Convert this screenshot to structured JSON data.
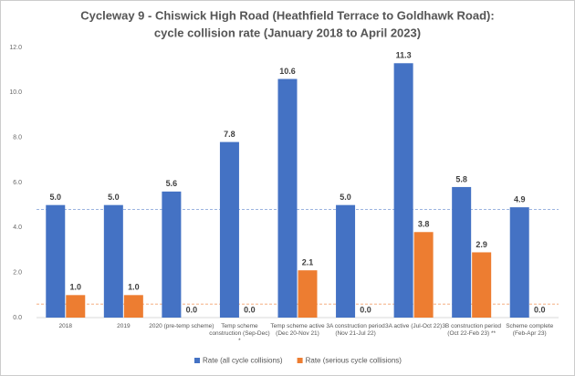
{
  "chart_data": {
    "type": "bar",
    "title": "Cycleway 9 - Chiswick High Road (Heathfield Terrace to Goldhawk Road):",
    "subtitle": "cycle collision rate (January 2018 to April 2023)",
    "categories": [
      "2018",
      "2019",
      "2020 (pre-temp scheme)",
      "Temp scheme construction (Sep-Dec) *",
      "Temp scheme active (Dec 20-Nov 21)",
      "3A construction period (Nov 21-Jul 22)",
      "3A active (Jul-Oct 22)",
      "3B construction period (Oct 22-Feb 23) **",
      "Scheme complete (Feb-Apr 23)"
    ],
    "series": [
      {
        "name": "Rate (all cycle collisions)",
        "color": "#4472c4",
        "values": [
          5.0,
          5.0,
          5.6,
          7.8,
          10.6,
          5.0,
          11.3,
          5.8,
          4.9
        ],
        "value_labels": [
          "5.0",
          "5.0",
          "5.6",
          "7.8",
          "10.6",
          "5.0",
          "11.3",
          "5.8",
          "4.9"
        ]
      },
      {
        "name": "Rate (serious cycle collisions)",
        "color": "#ed7d31",
        "values": [
          1.0,
          1.0,
          0,
          0,
          2.1,
          0,
          3.8,
          2.9,
          0
        ],
        "value_labels": [
          "1.0",
          "1.0",
          "0.0",
          "0.0",
          "2.1",
          "0.0",
          "3.8",
          "2.9",
          "0.0"
        ]
      }
    ],
    "reference_lines": [
      {
        "value": 4.8,
        "color": "#4472c4"
      },
      {
        "value": 0.6,
        "color": "#ed7d31"
      }
    ],
    "ylim": [
      0,
      12
    ],
    "yticks": [
      {
        "value": 0,
        "label": "0.0"
      },
      {
        "value": 2,
        "label": "2.0"
      },
      {
        "value": 4,
        "label": "4.0"
      },
      {
        "value": 6,
        "label": "6.0"
      },
      {
        "value": 8,
        "label": "8.0"
      },
      {
        "value": 10,
        "label": "10.0"
      },
      {
        "value": 12,
        "label": "12.0"
      }
    ],
    "grid": false,
    "legend": "bottom"
  }
}
